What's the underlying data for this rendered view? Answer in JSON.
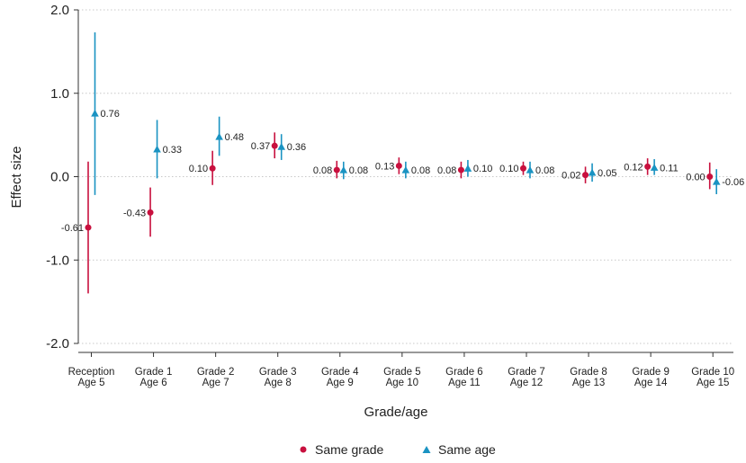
{
  "chart_data": {
    "type": "scatter",
    "xlabel": "Grade/age",
    "ylabel": "Effect size",
    "ylim": [
      -2.0,
      2.0
    ],
    "yticks": [
      "-2.0",
      "-1.0",
      "0.0",
      "1.0",
      "2.0"
    ],
    "grid": true,
    "legend_position": "bottom",
    "categories": [
      {
        "line1": "Reception",
        "line2": "Age 5"
      },
      {
        "line1": "Grade 1",
        "line2": "Age 6"
      },
      {
        "line1": "Grade 2",
        "line2": "Age 7"
      },
      {
        "line1": "Grade 3",
        "line2": "Age 8"
      },
      {
        "line1": "Grade 4",
        "line2": "Age 9"
      },
      {
        "line1": "Grade 5",
        "line2": "Age 10"
      },
      {
        "line1": "Grade 6",
        "line2": "Age 11"
      },
      {
        "line1": "Grade 7",
        "line2": "Age 12"
      },
      {
        "line1": "Grade 8",
        "line2": "Age 13"
      },
      {
        "line1": "Grade 9",
        "line2": "Age 14"
      },
      {
        "line1": "Grade 10",
        "line2": "Age 15"
      }
    ],
    "series": [
      {
        "name": "Same grade",
        "color": "#c8103e",
        "marker": "circle",
        "values": [
          -0.61,
          -0.43,
          0.1,
          0.37,
          0.08,
          0.13,
          0.08,
          0.1,
          0.02,
          0.12,
          0.0
        ],
        "labels": [
          "-0.61",
          "-0.43",
          "0.10",
          "0.37",
          "0.08",
          "0.13",
          "0.08",
          "0.10",
          "0.02",
          "0.12",
          "0.00"
        ],
        "ci_low": [
          -1.4,
          -0.72,
          -0.1,
          0.22,
          -0.02,
          0.03,
          -0.02,
          0.02,
          -0.08,
          0.02,
          -0.15
        ],
        "ci_high": [
          0.18,
          -0.13,
          0.31,
          0.53,
          0.19,
          0.23,
          0.18,
          0.18,
          0.12,
          0.22,
          0.17
        ]
      },
      {
        "name": "Same age",
        "color": "#1a93c2",
        "marker": "triangle",
        "values": [
          0.76,
          0.33,
          0.48,
          0.36,
          0.08,
          0.08,
          0.1,
          0.08,
          0.05,
          0.11,
          -0.06
        ],
        "labels": [
          "0.76",
          "0.33",
          "0.48",
          "0.36",
          "0.08",
          "0.08",
          "0.10",
          "0.08",
          "0.05",
          "0.11",
          "-0.06"
        ],
        "ci_low": [
          -0.22,
          -0.02,
          0.25,
          0.2,
          -0.03,
          -0.02,
          0.0,
          -0.02,
          -0.06,
          0.02,
          -0.21
        ],
        "ci_high": [
          1.73,
          0.68,
          0.72,
          0.51,
          0.18,
          0.18,
          0.2,
          0.18,
          0.16,
          0.21,
          0.09
        ]
      }
    ]
  }
}
